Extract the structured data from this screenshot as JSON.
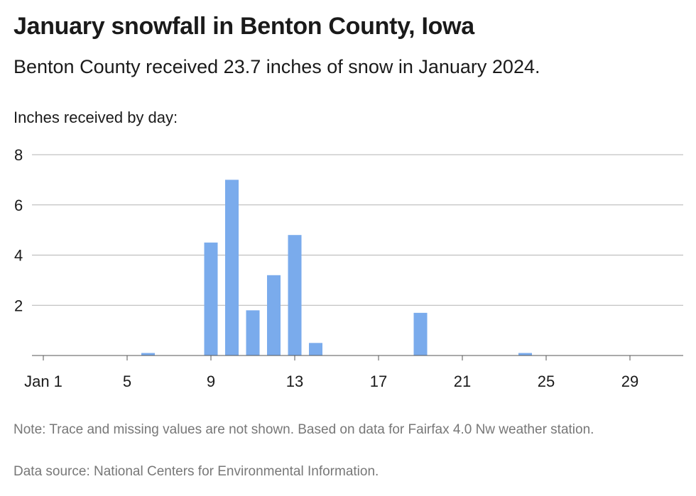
{
  "header": {
    "title": "January snowfall in Benton County, Iowa",
    "subtitle": "Benton County received 23.7 inches of snow in January 2024."
  },
  "footer": {
    "note": "Note: Trace and missing values are not shown. Based on data for Fairfax 4.0 Nw weather station.",
    "source": "Data source: National Centers for Environmental Information."
  },
  "colors": {
    "bar": "#7aabec",
    "grid": "#b3b3b3",
    "axis": "#555555"
  },
  "chart_data": {
    "type": "bar",
    "ylabel": "Inches received by day:",
    "x": [
      1,
      2,
      3,
      4,
      5,
      6,
      7,
      8,
      9,
      10,
      11,
      12,
      13,
      14,
      15,
      16,
      17,
      18,
      19,
      20,
      21,
      22,
      23,
      24,
      25,
      26,
      27,
      28,
      29,
      30,
      31
    ],
    "values": [
      0,
      0,
      0,
      0,
      0,
      0.1,
      0,
      0,
      4.5,
      7.0,
      1.8,
      3.2,
      4.8,
      0.5,
      0,
      0,
      0,
      0,
      1.7,
      0,
      0,
      0,
      0,
      0.1,
      0,
      0,
      0,
      0,
      0,
      0,
      0
    ],
    "ylim": [
      0,
      8
    ],
    "yticks": [
      2,
      4,
      6,
      8
    ],
    "xticks": [
      {
        "day": 1,
        "label": "Jan 1"
      },
      {
        "day": 5,
        "label": "5"
      },
      {
        "day": 9,
        "label": "9"
      },
      {
        "day": 13,
        "label": "13"
      },
      {
        "day": 17,
        "label": "17"
      },
      {
        "day": 21,
        "label": "21"
      },
      {
        "day": 25,
        "label": "25"
      },
      {
        "day": 29,
        "label": "29"
      }
    ],
    "grid": true
  }
}
